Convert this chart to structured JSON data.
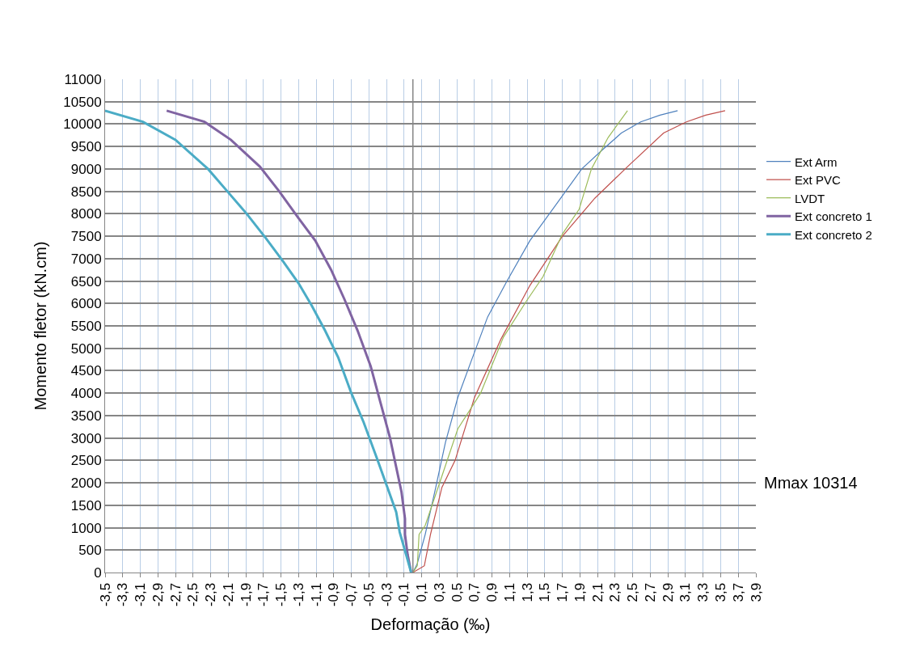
{
  "chart_data": {
    "type": "line",
    "xlabel": "Deformação (‰)",
    "ylabel": "Momento fletor (kN.cm)",
    "xlim": [
      -3.5,
      3.9
    ],
    "xticks": [
      {
        "value": -3.5,
        "label": "-3,5"
      },
      {
        "value": -3.3,
        "label": "-3,3"
      },
      {
        "value": -3.1,
        "label": "-3,1"
      },
      {
        "value": -2.9,
        "label": "-2,9"
      },
      {
        "value": -2.7,
        "label": "-2,7"
      },
      {
        "value": -2.5,
        "label": "-2,5"
      },
      {
        "value": -2.3,
        "label": "-2,3"
      },
      {
        "value": -2.1,
        "label": "-2,1"
      },
      {
        "value": -1.9,
        "label": "-1,9"
      },
      {
        "value": -1.7,
        "label": "-1,7"
      },
      {
        "value": -1.5,
        "label": "-1,5"
      },
      {
        "value": -1.3,
        "label": "-1,3"
      },
      {
        "value": -1.1,
        "label": "-1,1"
      },
      {
        "value": -0.9,
        "label": "-0,9"
      },
      {
        "value": -0.7,
        "label": "-0,7"
      },
      {
        "value": -0.5,
        "label": "-0,5"
      },
      {
        "value": -0.3,
        "label": "-0,3"
      },
      {
        "value": -0.1,
        "label": "-0,1"
      },
      {
        "value": 0.1,
        "label": "0,1"
      },
      {
        "value": 0.3,
        "label": "0,3"
      },
      {
        "value": 0.5,
        "label": "0,5"
      },
      {
        "value": 0.7,
        "label": "0,7"
      },
      {
        "value": 0.9,
        "label": "0,9"
      },
      {
        "value": 1.1,
        "label": "1,1"
      },
      {
        "value": 1.3,
        "label": "1,3"
      },
      {
        "value": 1.5,
        "label": "1,5"
      },
      {
        "value": 1.7,
        "label": "1,7"
      },
      {
        "value": 1.9,
        "label": "1,9"
      },
      {
        "value": 2.1,
        "label": "2,1"
      },
      {
        "value": 2.3,
        "label": "2,3"
      },
      {
        "value": 2.5,
        "label": "2,5"
      },
      {
        "value": 2.7,
        "label": "2,7"
      },
      {
        "value": 2.9,
        "label": "2,9"
      },
      {
        "value": 3.1,
        "label": "3,1"
      },
      {
        "value": 3.3,
        "label": "3,3"
      },
      {
        "value": 3.5,
        "label": "3,5"
      },
      {
        "value": 3.7,
        "label": "3,7"
      },
      {
        "value": 3.9,
        "label": "3,9"
      }
    ],
    "ylim": [
      0,
      11000
    ],
    "yticks": [
      0,
      500,
      1000,
      1500,
      2000,
      2500,
      3000,
      3500,
      4000,
      4500,
      5000,
      5500,
      6000,
      6500,
      7000,
      7500,
      8000,
      8500,
      9000,
      9500,
      10000,
      10500,
      11000
    ],
    "grid": true,
    "legend": "right",
    "marker": "none",
    "line_style": "solid",
    "ref_lines": [
      {
        "axis": "x",
        "value": 0,
        "color": "#868686"
      }
    ],
    "annotations": [
      "Mmax 10314"
    ],
    "series": [
      {
        "name": "Ext Arm",
        "color": "#4f81bd",
        "x": [
          0,
          0.05,
          0.14,
          0.26,
          0.37,
          0.51,
          0.66,
          0.85,
          1.07,
          1.33,
          1.7,
          1.92,
          2.14,
          2.37,
          2.59,
          2.81,
          3.01
        ],
        "values": [
          0,
          200,
          850,
          1900,
          2900,
          3900,
          4700,
          5700,
          6500,
          7400,
          8400,
          9000,
          9400,
          9800,
          10050,
          10200,
          10300
        ]
      },
      {
        "name": "Ext PVC",
        "color": "#c0504d",
        "x": [
          0,
          0.13,
          0.2,
          0.33,
          0.48,
          0.7,
          1.0,
          1.33,
          1.7,
          2.07,
          2.44,
          2.85,
          3.11,
          3.33,
          3.55
        ],
        "values": [
          0,
          150,
          850,
          1900,
          2500,
          3900,
          5200,
          6400,
          7500,
          8350,
          9050,
          9800,
          10050,
          10200,
          10300
        ]
      },
      {
        "name": "LVDT",
        "color": "#9bbb59",
        "x": [
          0,
          0.05,
          0.07,
          0.14,
          0.33,
          0.51,
          0.77,
          1.03,
          1.29,
          1.48,
          1.7,
          1.89,
          2.03,
          2.22,
          2.44
        ],
        "values": [
          0,
          150,
          850,
          1050,
          2150,
          3200,
          4000,
          5250,
          6050,
          6600,
          7550,
          8100,
          9000,
          9700,
          10300
        ]
      },
      {
        "name": "Ext concreto 1",
        "color": "#8064a2",
        "x": [
          -2.8,
          -2.37,
          -2.07,
          -1.74,
          -1.52,
          -1.3,
          -1.11,
          -0.93,
          -0.78,
          -0.63,
          -0.48,
          -0.37,
          -0.26,
          -0.19,
          -0.13,
          -0.09,
          -0.09,
          -0.06,
          -0.02
        ],
        "values": [
          10300,
          10050,
          9650,
          9050,
          8500,
          7900,
          7400,
          6750,
          6100,
          5400,
          4600,
          3800,
          3000,
          2350,
          1800,
          1200,
          850,
          400,
          0
        ]
      },
      {
        "name": "Ext concreto 2",
        "color": "#4bacc6",
        "x": [
          -3.5,
          -3.07,
          -2.7,
          -2.33,
          -2.11,
          -1.89,
          -1.67,
          -1.48,
          -1.3,
          -1.15,
          -1.0,
          -0.85,
          -0.7,
          -0.56,
          -0.41,
          -0.3,
          -0.19,
          -0.15,
          -0.07,
          -0.02
        ],
        "values": [
          10300,
          10050,
          9650,
          9000,
          8500,
          8000,
          7450,
          6950,
          6450,
          5950,
          5400,
          4800,
          4000,
          3350,
          2550,
          1950,
          1350,
          900,
          350,
          0
        ]
      }
    ]
  }
}
